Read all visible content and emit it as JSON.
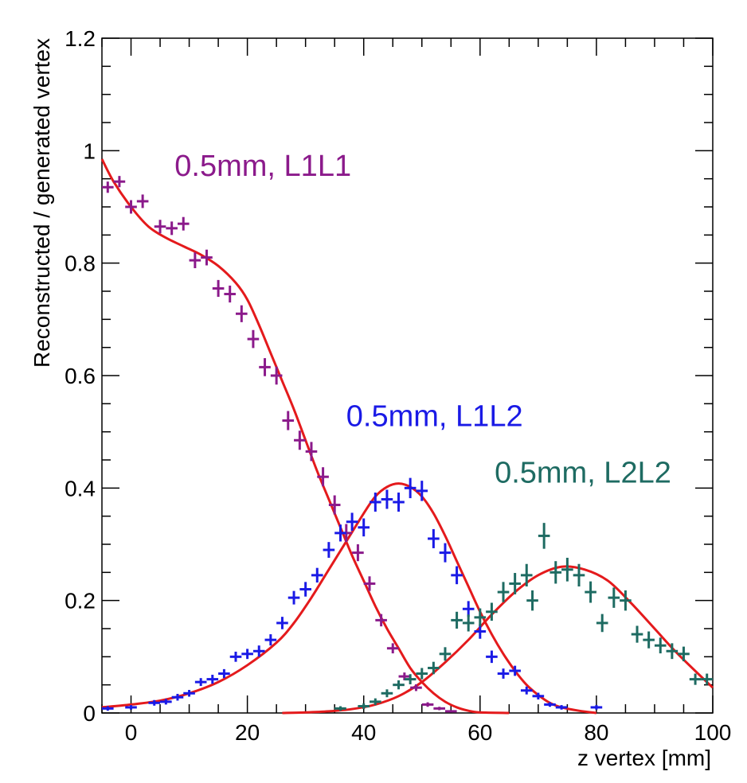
{
  "chart_data": {
    "type": "scatter",
    "title": "",
    "xlabel": "z vertex [mm]",
    "ylabel": "Reconstructed / generated vertex",
    "xlim": [
      -5,
      100
    ],
    "ylim": [
      0,
      1.2
    ],
    "x_ticks": [
      0,
      20,
      40,
      60,
      80,
      100
    ],
    "y_ticks": [
      0,
      0.2,
      0.4,
      0.6,
      0.8,
      1,
      1.2
    ],
    "x_tick_labels": [
      "0",
      "20",
      "40",
      "60",
      "80",
      "100"
    ],
    "y_tick_labels": [
      "0",
      "0.2",
      "0.4",
      "0.6",
      "0.8",
      "1",
      "1.2"
    ],
    "grid": false,
    "legend": "none",
    "fit_color": "#e41a1c",
    "annotations": [
      {
        "text": "0.5mm, L1L1",
        "color": "#8b1a8b",
        "x": 7.5,
        "y": 0.955
      },
      {
        "text": "0.5mm, L1L2",
        "color": "#1a1ae6",
        "x": 37,
        "y": 0.51
      },
      {
        "text": "0.5mm, L2L2",
        "color": "#1e6b62",
        "x": 62.5,
        "y": 0.41
      }
    ],
    "series": [
      {
        "name": "0.5mm, L1L1",
        "color": "#8b1a8b",
        "points": [
          [
            -4,
            0.935,
            0.01
          ],
          [
            -2,
            0.945,
            0.01
          ],
          [
            0,
            0.9,
            0.012
          ],
          [
            2,
            0.91,
            0.012
          ],
          [
            5,
            0.865,
            0.012
          ],
          [
            7,
            0.862,
            0.012
          ],
          [
            9,
            0.87,
            0.012
          ],
          [
            11,
            0.805,
            0.014
          ],
          [
            13,
            0.81,
            0.014
          ],
          [
            15,
            0.755,
            0.015
          ],
          [
            17,
            0.745,
            0.015
          ],
          [
            19,
            0.71,
            0.015
          ],
          [
            21,
            0.665,
            0.016
          ],
          [
            23,
            0.615,
            0.016
          ],
          [
            25,
            0.6,
            0.016
          ],
          [
            27,
            0.52,
            0.017
          ],
          [
            29,
            0.485,
            0.017
          ],
          [
            31,
            0.465,
            0.017
          ],
          [
            33,
            0.42,
            0.017
          ],
          [
            35,
            0.37,
            0.017
          ],
          [
            37,
            0.32,
            0.016
          ],
          [
            39,
            0.285,
            0.015
          ],
          [
            41,
            0.23,
            0.013
          ],
          [
            43,
            0.165,
            0.011
          ],
          [
            45,
            0.115,
            0.009
          ],
          [
            47,
            0.065,
            0.007
          ],
          [
            49,
            0.045,
            0.006
          ],
          [
            51,
            0.015,
            0.004
          ],
          [
            53,
            0.008,
            0.003
          ],
          [
            55,
            0.003,
            0.002
          ]
        ]
      },
      {
        "name": "0.5mm, L1L2",
        "color": "#1a1ae6",
        "points": [
          [
            -4,
            0.008,
            0.004
          ],
          [
            0,
            0.01,
            0.004
          ],
          [
            4,
            0.018,
            0.005
          ],
          [
            6,
            0.02,
            0.005
          ],
          [
            8,
            0.028,
            0.006
          ],
          [
            10,
            0.035,
            0.006
          ],
          [
            12,
            0.055,
            0.007
          ],
          [
            14,
            0.06,
            0.008
          ],
          [
            16,
            0.07,
            0.008
          ],
          [
            18,
            0.1,
            0.009
          ],
          [
            20,
            0.105,
            0.009
          ],
          [
            22,
            0.11,
            0.01
          ],
          [
            24,
            0.13,
            0.01
          ],
          [
            26,
            0.16,
            0.011
          ],
          [
            28,
            0.205,
            0.012
          ],
          [
            30,
            0.22,
            0.013
          ],
          [
            32,
            0.245,
            0.013
          ],
          [
            34,
            0.29,
            0.014
          ],
          [
            36,
            0.32,
            0.015
          ],
          [
            38,
            0.34,
            0.016
          ],
          [
            40,
            0.33,
            0.016
          ],
          [
            42,
            0.375,
            0.017
          ],
          [
            44,
            0.38,
            0.017
          ],
          [
            46,
            0.375,
            0.017
          ],
          [
            48,
            0.4,
            0.018
          ],
          [
            50,
            0.395,
            0.018
          ],
          [
            52,
            0.31,
            0.017
          ],
          [
            54,
            0.285,
            0.017
          ],
          [
            56,
            0.245,
            0.016
          ],
          [
            58,
            0.185,
            0.014
          ],
          [
            60,
            0.145,
            0.013
          ],
          [
            62,
            0.1,
            0.011
          ],
          [
            64,
            0.07,
            0.009
          ],
          [
            66,
            0.075,
            0.009
          ],
          [
            68,
            0.04,
            0.007
          ],
          [
            70,
            0.03,
            0.006
          ],
          [
            72,
            0.015,
            0.004
          ],
          [
            74,
            0.01,
            0.004
          ],
          [
            80,
            0.01,
            0.004
          ]
        ]
      },
      {
        "name": "0.5mm, L2L2",
        "color": "#1e6b62",
        "points": [
          [
            36,
            0.008,
            0.004
          ],
          [
            40,
            0.012,
            0.005
          ],
          [
            42,
            0.02,
            0.006
          ],
          [
            44,
            0.035,
            0.007
          ],
          [
            46,
            0.05,
            0.008
          ],
          [
            48,
            0.06,
            0.009
          ],
          [
            50,
            0.07,
            0.01
          ],
          [
            52,
            0.08,
            0.011
          ],
          [
            54,
            0.105,
            0.012
          ],
          [
            56,
            0.165,
            0.015
          ],
          [
            58,
            0.16,
            0.015
          ],
          [
            60,
            0.17,
            0.016
          ],
          [
            62,
            0.18,
            0.016
          ],
          [
            64,
            0.215,
            0.018
          ],
          [
            66,
            0.23,
            0.019
          ],
          [
            68,
            0.245,
            0.02
          ],
          [
            69,
            0.2,
            0.018
          ],
          [
            71,
            0.315,
            0.023
          ],
          [
            73,
            0.25,
            0.02
          ],
          [
            75,
            0.255,
            0.021
          ],
          [
            77,
            0.245,
            0.02
          ],
          [
            79,
            0.215,
            0.019
          ],
          [
            81,
            0.16,
            0.016
          ],
          [
            83,
            0.205,
            0.018
          ],
          [
            85,
            0.2,
            0.018
          ],
          [
            87,
            0.14,
            0.015
          ],
          [
            89,
            0.13,
            0.015
          ],
          [
            91,
            0.12,
            0.014
          ],
          [
            93,
            0.11,
            0.014
          ],
          [
            95,
            0.105,
            0.013
          ],
          [
            97,
            0.06,
            0.01
          ],
          [
            99,
            0.06,
            0.01
          ]
        ]
      }
    ],
    "fits": [
      {
        "for": "0.5mm, L1L1",
        "points": [
          [
            -5,
            0.985
          ],
          [
            -3,
            0.945
          ],
          [
            0,
            0.9
          ],
          [
            3,
            0.865
          ],
          [
            6,
            0.845
          ],
          [
            9,
            0.83
          ],
          [
            12,
            0.815
          ],
          [
            15,
            0.795
          ],
          [
            18,
            0.765
          ],
          [
            20,
            0.735
          ],
          [
            22,
            0.69
          ],
          [
            24,
            0.64
          ],
          [
            26,
            0.59
          ],
          [
            28,
            0.54
          ],
          [
            30,
            0.485
          ],
          [
            32,
            0.43
          ],
          [
            34,
            0.38
          ],
          [
            36,
            0.33
          ],
          [
            38,
            0.28
          ],
          [
            40,
            0.235
          ],
          [
            42,
            0.19
          ],
          [
            44,
            0.15
          ],
          [
            46,
            0.115
          ],
          [
            48,
            0.08
          ],
          [
            50,
            0.055
          ],
          [
            52,
            0.035
          ],
          [
            54,
            0.02
          ],
          [
            56,
            0.01
          ],
          [
            58,
            0.004
          ],
          [
            60,
            0.001
          ],
          [
            65,
            0.0
          ]
        ]
      },
      {
        "for": "0.5mm, L1L2",
        "points": [
          [
            -5,
            0.01
          ],
          [
            0,
            0.015
          ],
          [
            5,
            0.022
          ],
          [
            10,
            0.035
          ],
          [
            15,
            0.055
          ],
          [
            20,
            0.085
          ],
          [
            25,
            0.125
          ],
          [
            28,
            0.16
          ],
          [
            31,
            0.205
          ],
          [
            34,
            0.255
          ],
          [
            37,
            0.305
          ],
          [
            40,
            0.355
          ],
          [
            42,
            0.385
          ],
          [
            44,
            0.402
          ],
          [
            46,
            0.408
          ],
          [
            48,
            0.402
          ],
          [
            50,
            0.385
          ],
          [
            52,
            0.355
          ],
          [
            54,
            0.315
          ],
          [
            56,
            0.27
          ],
          [
            58,
            0.225
          ],
          [
            60,
            0.18
          ],
          [
            62,
            0.14
          ],
          [
            64,
            0.105
          ],
          [
            66,
            0.075
          ],
          [
            68,
            0.05
          ],
          [
            70,
            0.032
          ],
          [
            72,
            0.018
          ],
          [
            74,
            0.01
          ],
          [
            77,
            0.004
          ],
          [
            80,
            0.0
          ]
        ]
      },
      {
        "for": "0.5mm, L2L2",
        "points": [
          [
            26,
            0.0
          ],
          [
            30,
            0.001
          ],
          [
            34,
            0.003
          ],
          [
            38,
            0.007
          ],
          [
            42,
            0.015
          ],
          [
            46,
            0.03
          ],
          [
            50,
            0.055
          ],
          [
            54,
            0.09
          ],
          [
            58,
            0.13
          ],
          [
            62,
            0.175
          ],
          [
            66,
            0.215
          ],
          [
            70,
            0.245
          ],
          [
            74,
            0.26
          ],
          [
            78,
            0.255
          ],
          [
            82,
            0.235
          ],
          [
            86,
            0.195
          ],
          [
            90,
            0.15
          ],
          [
            94,
            0.105
          ],
          [
            100,
            0.045
          ]
        ]
      }
    ]
  }
}
